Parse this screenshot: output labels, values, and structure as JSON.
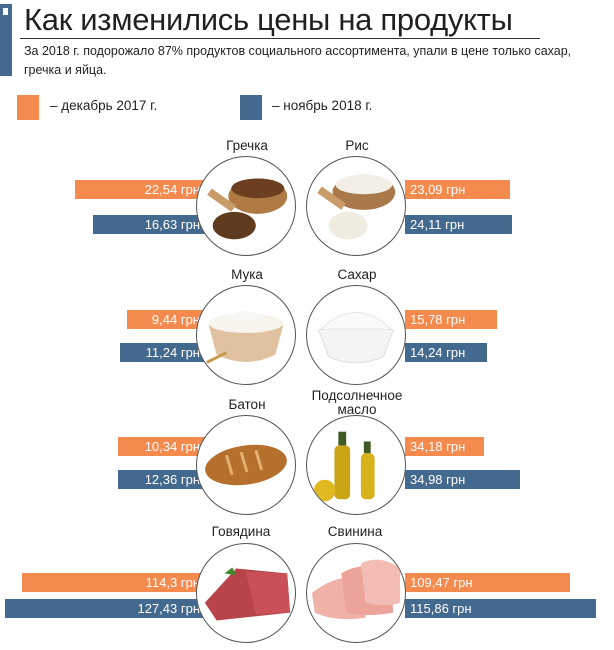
{
  "title": "Как изменились цены на продукты",
  "subtitle": "За 2018 г. подорожало 87% продуктов социального ассортимента, упали в цене только сахар, гречка и яйца.",
  "legend": {
    "dec2017": "– декабрь 2017 г.",
    "nov2018": "– ноябрь 2018 г.",
    "colors": {
      "dec2017": "#f48a4e",
      "nov2018": "#44698f"
    }
  },
  "products": [
    {
      "name": "Гречка",
      "dec2017": "22,54 грн",
      "nov2018": "16,63 грн",
      "icon": "buckwheat-icon"
    },
    {
      "name": "Рис",
      "dec2017": "23,09 грн",
      "nov2018": "24,11 грн",
      "icon": "rice-icon"
    },
    {
      "name": "Мука",
      "dec2017": "9,44 грн",
      "nov2018": "11,24 грн",
      "icon": "flour-icon"
    },
    {
      "name": "Сахар",
      "dec2017": "15,78 грн",
      "nov2018": "14,24 грн",
      "icon": "sugar-icon"
    },
    {
      "name": "Батон",
      "dec2017": "10,34 грн",
      "nov2018": "12,36 грн",
      "icon": "bread-icon"
    },
    {
      "name": "Подсолнечное масло",
      "dec2017": "34,18 грн",
      "nov2018": "34,98 грн",
      "icon": "oil-icon"
    },
    {
      "name": "Говядина",
      "dec2017": "114,3 грн",
      "nov2018": "127,43 грн",
      "icon": "beef-icon"
    },
    {
      "name": "Свинина",
      "dec2017": "109,47 грн",
      "nov2018": "115,86 грн",
      "icon": "pork-icon"
    }
  ]
}
